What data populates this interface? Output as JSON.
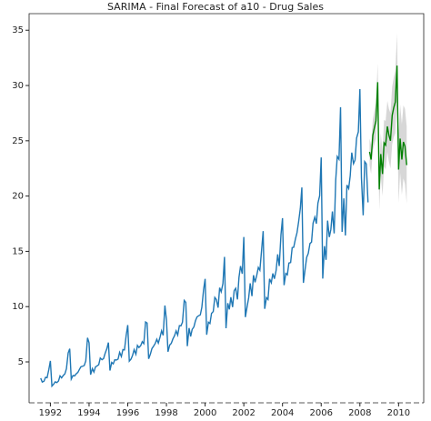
{
  "chart_data": {
    "type": "line",
    "title": "SARIMA - Final Forecast of a10 - Drug Sales",
    "xlim": [
      1990.9,
      2011.3
    ],
    "ylim": [
      1.3,
      36.5
    ],
    "xticks": [
      1992,
      1994,
      1996,
      1998,
      2000,
      2002,
      2004,
      2006,
      2008,
      2010
    ],
    "yticks": [
      5,
      10,
      15,
      20,
      25,
      30,
      35
    ],
    "band_color": "#d3d3d3",
    "series": [
      {
        "color": "#1f77b4",
        "x": [
          1991.5,
          1991.58,
          1991.67,
          1991.75,
          1991.83,
          1991.92,
          1992.0,
          1992.08,
          1992.17,
          1992.25,
          1992.33,
          1992.42,
          1992.5,
          1992.58,
          1992.67,
          1992.75,
          1992.83,
          1992.92,
          1993.0,
          1993.08,
          1993.17,
          1993.25,
          1993.33,
          1993.42,
          1993.5,
          1993.58,
          1993.67,
          1993.75,
          1993.83,
          1993.92,
          1994.0,
          1994.08,
          1994.17,
          1994.25,
          1994.33,
          1994.42,
          1994.5,
          1994.58,
          1994.67,
          1994.75,
          1994.83,
          1994.92,
          1995.0,
          1995.08,
          1995.17,
          1995.25,
          1995.33,
          1995.42,
          1995.5,
          1995.58,
          1995.67,
          1995.75,
          1995.83,
          1995.92,
          1996.0,
          1996.08,
          1996.17,
          1996.25,
          1996.33,
          1996.42,
          1996.5,
          1996.58,
          1996.67,
          1996.75,
          1996.83,
          1996.92,
          1997.0,
          1997.08,
          1997.17,
          1997.25,
          1997.33,
          1997.42,
          1997.5,
          1997.58,
          1997.67,
          1997.75,
          1997.83,
          1997.92,
          1998.0,
          1998.08,
          1998.17,
          1998.25,
          1998.33,
          1998.42,
          1998.5,
          1998.58,
          1998.67,
          1998.75,
          1998.83,
          1998.92,
          1999.0,
          1999.08,
          1999.17,
          1999.25,
          1999.33,
          1999.42,
          1999.5,
          1999.58,
          1999.67,
          1999.75,
          1999.83,
          1999.92,
          2000.0,
          2000.08,
          2000.17,
          2000.25,
          2000.33,
          2000.42,
          2000.5,
          2000.58,
          2000.67,
          2000.75,
          2000.83,
          2000.92,
          2001.0,
          2001.08,
          2001.17,
          2001.25,
          2001.33,
          2001.42,
          2001.5,
          2001.58,
          2001.67,
          2001.75,
          2001.83,
          2001.92,
          2002.0,
          2002.08,
          2002.17,
          2002.25,
          2002.33,
          2002.42,
          2002.5,
          2002.58,
          2002.67,
          2002.75,
          2002.83,
          2002.92,
          2003.0,
          2003.08,
          2003.17,
          2003.25,
          2003.33,
          2003.42,
          2003.5,
          2003.58,
          2003.67,
          2003.75,
          2003.83,
          2003.92,
          2004.0,
          2004.08,
          2004.17,
          2004.25,
          2004.33,
          2004.42,
          2004.5,
          2004.58,
          2004.67,
          2004.75,
          2004.83,
          2004.92,
          2005.0,
          2005.08,
          2005.17,
          2005.25,
          2005.33,
          2005.42,
          2005.5,
          2005.58,
          2005.67,
          2005.75,
          2005.83,
          2005.92,
          2006.0,
          2006.08,
          2006.17,
          2006.25,
          2006.33,
          2006.42,
          2006.5,
          2006.58,
          2006.67,
          2006.75,
          2006.83,
          2006.92,
          2007.0,
          2007.08,
          2007.17,
          2007.25,
          2007.33,
          2007.42,
          2007.5,
          2007.58,
          2007.67,
          2007.75,
          2007.83,
          2007.92,
          2008.0,
          2008.08,
          2008.17,
          2008.25,
          2008.33,
          2008.42
        ],
        "values": [
          3.53,
          3.18,
          3.25,
          3.61,
          3.57,
          4.31,
          5.09,
          2.81,
          2.99,
          3.2,
          3.13,
          3.27,
          3.74,
          3.56,
          3.78,
          3.92,
          4.39,
          5.81,
          6.19,
          3.45,
          3.77,
          3.73,
          3.91,
          4.05,
          4.32,
          4.56,
          4.61,
          4.67,
          5.09,
          7.18,
          6.73,
          3.84,
          4.39,
          4.08,
          4.54,
          4.65,
          4.75,
          5.35,
          5.2,
          5.3,
          5.77,
          6.2,
          6.75,
          4.22,
          4.95,
          4.82,
          5.19,
          5.17,
          5.26,
          5.86,
          5.49,
          6.12,
          6.09,
          7.42,
          8.33,
          5.07,
          5.26,
          5.6,
          6.11,
          5.69,
          6.49,
          6.3,
          6.47,
          6.83,
          6.65,
          8.61,
          8.52,
          5.28,
          5.71,
          6.21,
          6.41,
          6.67,
          7.05,
          6.7,
          7.25,
          7.82,
          7.4,
          10.1,
          8.8,
          5.92,
          6.53,
          6.68,
          7.06,
          7.38,
          7.81,
          7.43,
          8.28,
          8.26,
          8.6,
          10.56,
          10.39,
          6.42,
          8.06,
          7.3,
          7.94,
          8.17,
          8.72,
          9.07,
          9.18,
          9.25,
          9.93,
          11.53,
          12.51,
          7.46,
          8.59,
          8.47,
          9.39,
          9.56,
          10.83,
          10.64,
          9.91,
          11.71,
          11.34,
          12.08,
          14.5,
          8.05,
          10.31,
          9.75,
          10.85,
          9.96,
          11.44,
          11.66,
          10.65,
          12.65,
          13.67,
          12.97,
          16.3,
          9.05,
          10.0,
          10.79,
          12.11,
          10.95,
          12.84,
          12.2,
          12.85,
          13.54,
          13.29,
          15.13,
          16.83,
          9.8,
          10.82,
          10.65,
          12.51,
          12.16,
          13.0,
          12.52,
          13.27,
          14.73,
          13.67,
          16.5,
          18.0,
          11.94,
          13.0,
          12.88,
          13.94,
          13.99,
          15.34,
          15.37,
          16.14,
          16.69,
          17.64,
          18.87,
          20.78,
          12.15,
          13.4,
          14.46,
          14.8,
          15.71,
          15.83,
          17.55,
          18.1,
          17.5,
          19.35,
          20.03,
          23.49,
          12.54,
          15.47,
          14.23,
          17.78,
          16.29,
          16.98,
          18.61,
          16.62,
          21.43,
          23.58,
          23.33,
          28.04,
          16.76,
          19.79,
          16.43,
          21.0,
          20.68,
          21.83,
          23.93,
          22.93,
          23.26,
          25.25,
          25.81,
          29.67,
          21.65,
          18.26,
          23.11,
          22.91,
          19.43
        ]
      },
      {
        "color": "#008000",
        "x": [
          2008.5,
          2008.58,
          2008.67,
          2008.75,
          2008.83,
          2008.92,
          2009.0,
          2009.08,
          2009.17,
          2009.25,
          2009.33,
          2009.42,
          2009.5,
          2009.58,
          2009.67,
          2009.75,
          2009.83,
          2009.92,
          2010.0,
          2010.08,
          2010.17,
          2010.25,
          2010.33,
          2010.42
        ],
        "values": [
          24.0,
          23.3,
          25.5,
          26.2,
          26.8,
          30.3,
          20.6,
          23.8,
          22.0,
          24.8,
          24.6,
          26.3,
          25.5,
          25.0,
          27.3,
          28.0,
          28.5,
          31.8,
          22.4,
          25.2,
          23.3,
          24.9,
          24.5,
          22.8
        ],
        "lower": [
          22.8,
          22.0,
          24.1,
          24.7,
          25.2,
          28.6,
          18.8,
          21.9,
          20.0,
          22.7,
          22.4,
          24.0,
          23.1,
          22.5,
          24.7,
          25.3,
          25.7,
          28.9,
          19.4,
          22.1,
          20.1,
          21.6,
          21.1,
          19.3
        ],
        "upper": [
          25.2,
          24.6,
          26.9,
          27.7,
          28.4,
          32.0,
          22.4,
          25.7,
          24.0,
          26.9,
          26.8,
          28.6,
          27.9,
          27.5,
          29.9,
          30.7,
          31.3,
          34.7,
          25.4,
          28.3,
          26.5,
          28.2,
          27.9,
          26.3
        ]
      }
    ]
  }
}
